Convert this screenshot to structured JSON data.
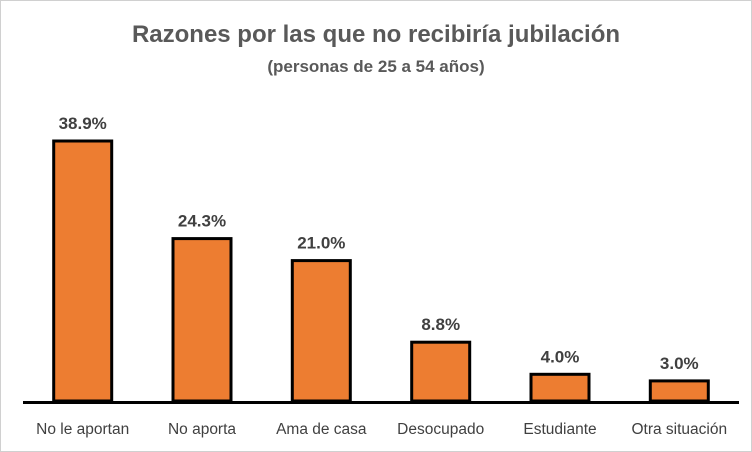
{
  "chart_data": {
    "type": "bar",
    "title": "Razones por las que no recibiría jubilación",
    "subtitle": "(personas de 25 a 54 años)",
    "xlabel": "",
    "ylabel": "",
    "categories": [
      "No le aportan",
      "No aporta",
      "Ama de casa",
      "Desocupado",
      "Estudiante",
      "Otra situación"
    ],
    "values": [
      38.9,
      24.3,
      21.0,
      8.8,
      4.0,
      3.0
    ],
    "data_labels": [
      "38.9%",
      "24.3%",
      "21.0%",
      "8.8%",
      "4.0%",
      "3.0%"
    ],
    "ylim": [
      0,
      40
    ],
    "grid": false,
    "legend": "none",
    "bar_color": "#ED7D31",
    "bar_border_color": "#000000"
  }
}
